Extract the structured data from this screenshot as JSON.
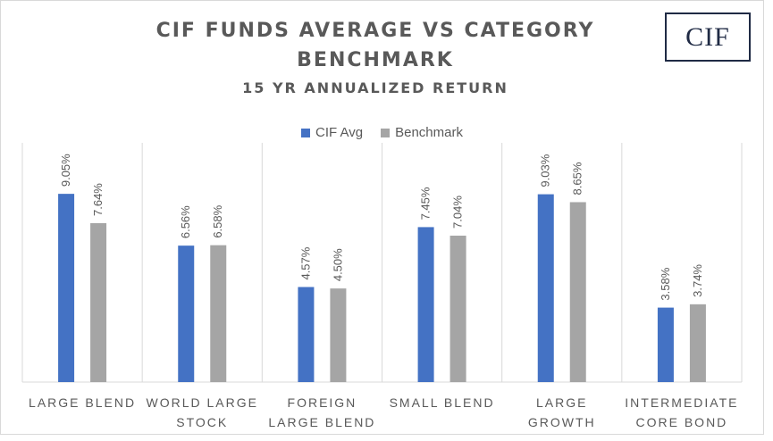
{
  "chart_data": {
    "type": "bar",
    "title": "CIF FUNDS AVERAGE VS CATEGORY BENCHMARK",
    "subtitle": "15 YR ANNUALIZED RETURN",
    "categories": [
      "LARGE BLEND",
      "WORLD LARGE STOCK",
      "FOREIGN LARGE BLEND",
      "SMALL BLEND",
      "LARGE GROWTH",
      "INTERMEDIATE CORE BOND"
    ],
    "series": [
      {
        "name": "CIF Avg",
        "color": "#4472c4",
        "values": [
          9.05,
          6.56,
          4.57,
          7.45,
          9.03,
          3.58
        ]
      },
      {
        "name": "Benchmark",
        "color": "#a5a5a5",
        "values": [
          7.64,
          6.58,
          4.5,
          7.04,
          8.65,
          3.74
        ]
      }
    ],
    "data_labels": [
      [
        "9.05%",
        "6.56%",
        "4.57%",
        "7.45%",
        "9.03%",
        "3.58%"
      ],
      [
        "7.64%",
        "6.58%",
        "4.50%",
        "7.04%",
        "8.65%",
        "3.74%"
      ]
    ],
    "ylim": [
      0,
      10
    ],
    "grid": false,
    "legend_position": "top"
  },
  "logo_text": "CIF"
}
